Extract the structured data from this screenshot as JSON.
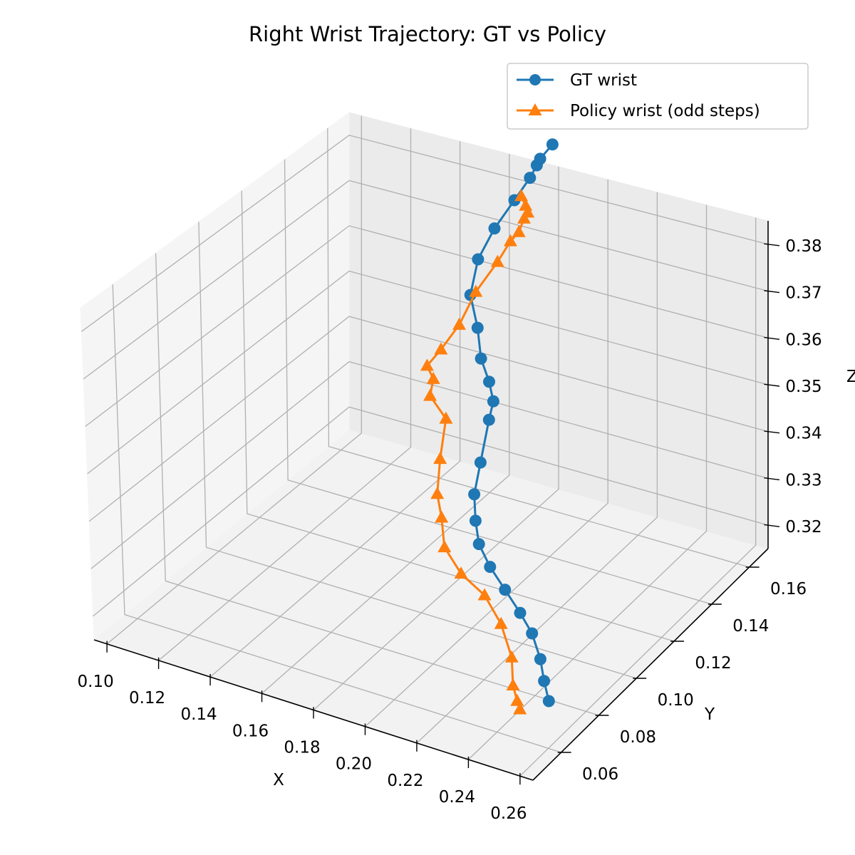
{
  "chart_data": {
    "type": "line",
    "title": "Right Wrist Trajectory: GT vs Policy",
    "xlabel": "X",
    "ylabel": "Y",
    "zlabel": "Z",
    "x_ticks": [
      "0.10",
      "0.12",
      "0.14",
      "0.16",
      "0.18",
      "0.20",
      "0.22",
      "0.24",
      "0.26"
    ],
    "y_ticks": [
      "0.06",
      "0.08",
      "0.10",
      "0.12",
      "0.14",
      "0.16"
    ],
    "z_ticks": [
      "0.32",
      "0.33",
      "0.34",
      "0.35",
      "0.36",
      "0.37",
      "0.38"
    ],
    "xlim": [
      0.095,
      0.265
    ],
    "ylim": [
      0.045,
      0.17
    ],
    "zlim": [
      0.315,
      0.385
    ],
    "grid": true,
    "legend_position": "top-right",
    "series": [
      {
        "name": "GT wrist",
        "color": "#1f77b4",
        "marker": "circle",
        "points": [
          [
            0.2535,
            0.069,
            0.3213
          ],
          [
            0.2472,
            0.075,
            0.3222
          ],
          [
            0.2398,
            0.083,
            0.3224
          ],
          [
            0.2298,
            0.092,
            0.3226
          ],
          [
            0.2202,
            0.0985,
            0.3228
          ],
          [
            0.2093,
            0.105,
            0.3234
          ],
          [
            0.198,
            0.112,
            0.3237
          ],
          [
            0.1878,
            0.1195,
            0.324
          ],
          [
            0.1802,
            0.1275,
            0.3247
          ],
          [
            0.173,
            0.136,
            0.326
          ],
          [
            0.1668,
            0.147,
            0.3277
          ],
          [
            0.16,
            0.1598,
            0.331
          ],
          [
            0.16,
            0.162,
            0.3342
          ],
          [
            0.1575,
            0.163,
            0.3377
          ],
          [
            0.153,
            0.1645,
            0.3415
          ],
          [
            0.1508,
            0.1655,
            0.3475
          ],
          [
            0.1475,
            0.166,
            0.354
          ],
          [
            0.1502,
            0.1665,
            0.362
          ],
          [
            0.1562,
            0.1673,
            0.3693
          ],
          [
            0.1633,
            0.1685,
            0.376
          ],
          [
            0.1692,
            0.169,
            0.3815
          ],
          [
            0.1718,
            0.1692,
            0.3845
          ],
          [
            0.173,
            0.1694,
            0.386
          ],
          [
            0.1775,
            0.17,
            0.3895
          ]
        ]
      },
      {
        "name": "Policy wrist (odd steps)",
        "color": "#ff7f0e",
        "marker": "triangle",
        "points": [
          [
            0.2485,
            0.0605,
            0.3222
          ],
          [
            0.245,
            0.0638,
            0.322
          ],
          [
            0.2388,
            0.07,
            0.3217
          ],
          [
            0.2301,
            0.081,
            0.3218
          ],
          [
            0.218,
            0.0915,
            0.3228
          ],
          [
            0.2043,
            0.101,
            0.3229
          ],
          [
            0.19,
            0.1075,
            0.3226
          ],
          [
            0.178,
            0.1145,
            0.3236
          ],
          [
            0.1702,
            0.123,
            0.3255
          ],
          [
            0.163,
            0.13,
            0.3268
          ],
          [
            0.1542,
            0.1425,
            0.3282
          ],
          [
            0.1465,
            0.155,
            0.331
          ],
          [
            0.1385,
            0.157,
            0.334
          ],
          [
            0.14,
            0.1568,
            0.338
          ],
          [
            0.1375,
            0.1568,
            0.3405
          ],
          [
            0.1432,
            0.1567,
            0.345
          ],
          [
            0.1505,
            0.1568,
            0.3515
          ],
          [
            0.1568,
            0.1573,
            0.3595
          ],
          [
            0.1642,
            0.159,
            0.3665
          ],
          [
            0.1682,
            0.1605,
            0.371
          ],
          [
            0.1708,
            0.1615,
            0.373
          ],
          [
            0.1725,
            0.162,
            0.376
          ],
          [
            0.174,
            0.162,
            0.3775
          ],
          [
            0.1733,
            0.1618,
            0.379
          ],
          [
            0.1718,
            0.1615,
            0.381
          ]
        ]
      }
    ]
  }
}
